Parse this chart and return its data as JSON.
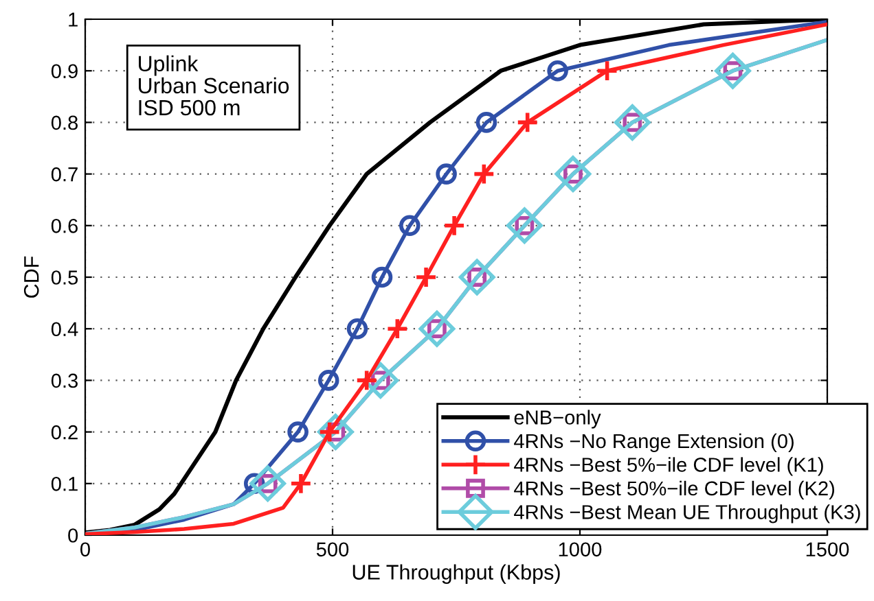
{
  "chart_data": {
    "type": "line",
    "xlabel": "UE Throughput (Kbps)",
    "ylabel": "CDF",
    "xlim": [
      0,
      1500
    ],
    "xticks": [
      0,
      500,
      1000,
      1500
    ],
    "ylim": [
      0,
      1
    ],
    "yticks": [
      0,
      0.1,
      0.2,
      0.3,
      0.4,
      0.5,
      0.6,
      0.7,
      0.8,
      0.9,
      1
    ],
    "grid": true,
    "legend": "bottom right",
    "line_style": "solid",
    "annotations": [
      "Uplink\nUrban Scenario\nISD 500 m"
    ],
    "series": [
      {
        "name": "eNB−only",
        "color": "#000000",
        "marker": "none",
        "x": [
          0,
          50,
          100,
          150,
          180,
          263,
          305,
          360,
          425,
          494,
          569,
          697,
          840,
          1000,
          1250,
          1500
        ],
        "values": [
          0.005,
          0.01,
          0.02,
          0.05,
          0.08,
          0.2,
          0.3,
          0.4,
          0.5,
          0.6,
          0.7,
          0.8,
          0.9,
          0.95,
          0.99,
          1.0
        ]
      },
      {
        "name": "4RNs −No Range Extension (0)",
        "color": "#3050a8",
        "marker": "circle",
        "x": [
          0,
          100,
          200,
          300,
          342,
          430,
          492,
          550,
          600,
          656,
          730,
          811,
          955,
          1180,
          1500
        ],
        "values": [
          0.003,
          0.01,
          0.03,
          0.06,
          0.1,
          0.2,
          0.3,
          0.4,
          0.5,
          0.6,
          0.7,
          0.8,
          0.9,
          0.95,
          0.995
        ]
      },
      {
        "name": "4RNs −Best 5%−ile CDF level (K1)",
        "color": "#ff2020",
        "marker": "cross",
        "x": [
          0,
          100,
          200,
          300,
          400,
          436,
          494,
          569,
          631,
          689,
          746,
          806,
          894,
          1055,
          1290,
          1500
        ],
        "values": [
          0.002,
          0.006,
          0.012,
          0.022,
          0.053,
          0.1,
          0.2,
          0.3,
          0.4,
          0.5,
          0.6,
          0.7,
          0.8,
          0.9,
          0.95,
          0.99
        ]
      },
      {
        "name": "4RNs −Best 50%−ile CDF level (K2)",
        "color": "#b04ca8",
        "marker": "square",
        "x": [
          0,
          100,
          200,
          300,
          369,
          506,
          597,
          711,
          792,
          888,
          986,
          1106,
          1309,
          1500
        ],
        "values": [
          0.003,
          0.015,
          0.035,
          0.06,
          0.1,
          0.2,
          0.3,
          0.4,
          0.5,
          0.6,
          0.7,
          0.8,
          0.9,
          0.96
        ]
      },
      {
        "name": "4RNs −Best Mean UE Throughput (K3)",
        "color": "#6cccdc",
        "marker": "diamond",
        "x": [
          0,
          100,
          200,
          300,
          369,
          506,
          597,
          711,
          792,
          888,
          986,
          1106,
          1309,
          1500
        ],
        "values": [
          0.003,
          0.015,
          0.035,
          0.06,
          0.1,
          0.2,
          0.3,
          0.4,
          0.5,
          0.6,
          0.7,
          0.8,
          0.9,
          0.96
        ]
      }
    ]
  }
}
